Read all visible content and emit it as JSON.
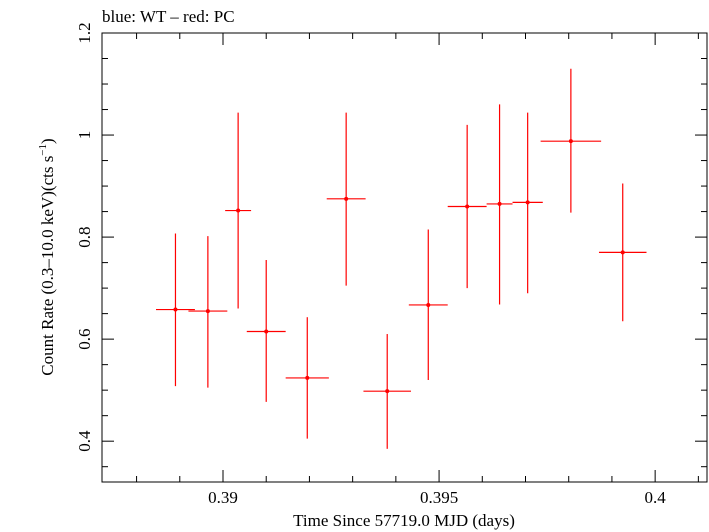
{
  "chart_data": {
    "type": "scatter",
    "title": "blue: WT – red: PC",
    "xlabel": "Time Since 57719.0 MJD (days)",
    "ylabel_main": "Count Rate (0.3–10.0 keV)(cts s",
    "ylabel_exp": "−1",
    "ylabel_tail": ")",
    "xlim": [
      0.3872,
      0.4012
    ],
    "ylim": [
      0.32,
      1.2
    ],
    "xticks": [
      0.39,
      0.395,
      0.4
    ],
    "xtick_labels": [
      "0.39",
      "0.395",
      "0.4"
    ],
    "yticks": [
      0.4,
      0.6,
      0.8,
      1.0,
      1.2
    ],
    "ytick_labels": [
      "0.4",
      "0.6",
      "0.8",
      "1",
      "1.2"
    ],
    "grid": false,
    "series": [
      {
        "color": "#ff0000",
        "points": [
          {
            "x": 0.3889,
            "xerr": 0.00045,
            "y": 0.658,
            "ylo": 0.508,
            "yhi": 0.807
          },
          {
            "x": 0.38965,
            "xerr": 0.00045,
            "y": 0.655,
            "ylo": 0.505,
            "yhi": 0.802
          },
          {
            "x": 0.39035,
            "xerr": 0.0003,
            "y": 0.852,
            "ylo": 0.66,
            "yhi": 1.044
          },
          {
            "x": 0.391,
            "xerr": 0.00045,
            "y": 0.615,
            "ylo": 0.477,
            "yhi": 0.755
          },
          {
            "x": 0.39195,
            "xerr": 0.0005,
            "y": 0.524,
            "ylo": 0.405,
            "yhi": 0.643
          },
          {
            "x": 0.39285,
            "xerr": 0.00045,
            "y": 0.875,
            "ylo": 0.705,
            "yhi": 1.044
          },
          {
            "x": 0.3938,
            "xerr": 0.00055,
            "y": 0.498,
            "ylo": 0.385,
            "yhi": 0.61
          },
          {
            "x": 0.39475,
            "xerr": 0.00045,
            "y": 0.667,
            "ylo": 0.52,
            "yhi": 0.815
          },
          {
            "x": 0.39565,
            "xerr": 0.00045,
            "y": 0.86,
            "ylo": 0.7,
            "yhi": 1.02
          },
          {
            "x": 0.3964,
            "xerr": 0.0003,
            "y": 0.865,
            "ylo": 0.668,
            "yhi": 1.06
          },
          {
            "x": 0.39705,
            "xerr": 0.00035,
            "y": 0.868,
            "ylo": 0.69,
            "yhi": 1.044
          },
          {
            "x": 0.39805,
            "xerr": 0.0007,
            "y": 0.988,
            "ylo": 0.848,
            "yhi": 1.13
          },
          {
            "x": 0.39925,
            "xerr": 0.00055,
            "y": 0.77,
            "ylo": 0.635,
            "yhi": 0.905
          }
        ]
      }
    ]
  }
}
